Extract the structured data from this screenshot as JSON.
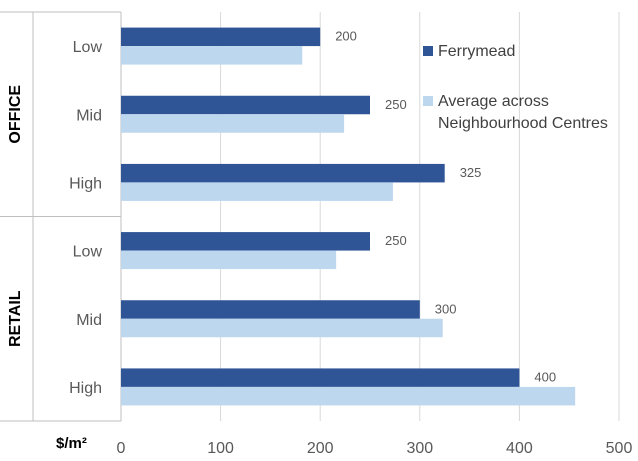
{
  "chart_data": {
    "type": "bar",
    "orientation": "horizontal",
    "unit_label": "$/m²",
    "groups": [
      {
        "name": "OFFICE",
        "categories": [
          "Low",
          "Mid",
          "High"
        ]
      },
      {
        "name": "RETAIL",
        "categories": [
          "Low",
          "Mid",
          "High"
        ]
      }
    ],
    "series": [
      {
        "name": "Ferrymead",
        "color": "#2F5597",
        "values": [
          200,
          250,
          325,
          250,
          300,
          400
        ],
        "data_labels": [
          "200",
          "250",
          "325",
          "250",
          "300",
          "400"
        ]
      },
      {
        "name": "Average across Neighbourhood Centres",
        "legend_lines": [
          "Average across",
          "Neighbourhood Centres"
        ],
        "color": "#BDD7EE",
        "values": [
          182,
          224,
          273,
          216,
          323,
          456
        ]
      }
    ],
    "xlim": [
      0,
      500
    ],
    "xticks": [
      "0",
      "100",
      "200",
      "300",
      "400",
      "500"
    ],
    "grid": "vertical",
    "legend_position": "top-right"
  }
}
